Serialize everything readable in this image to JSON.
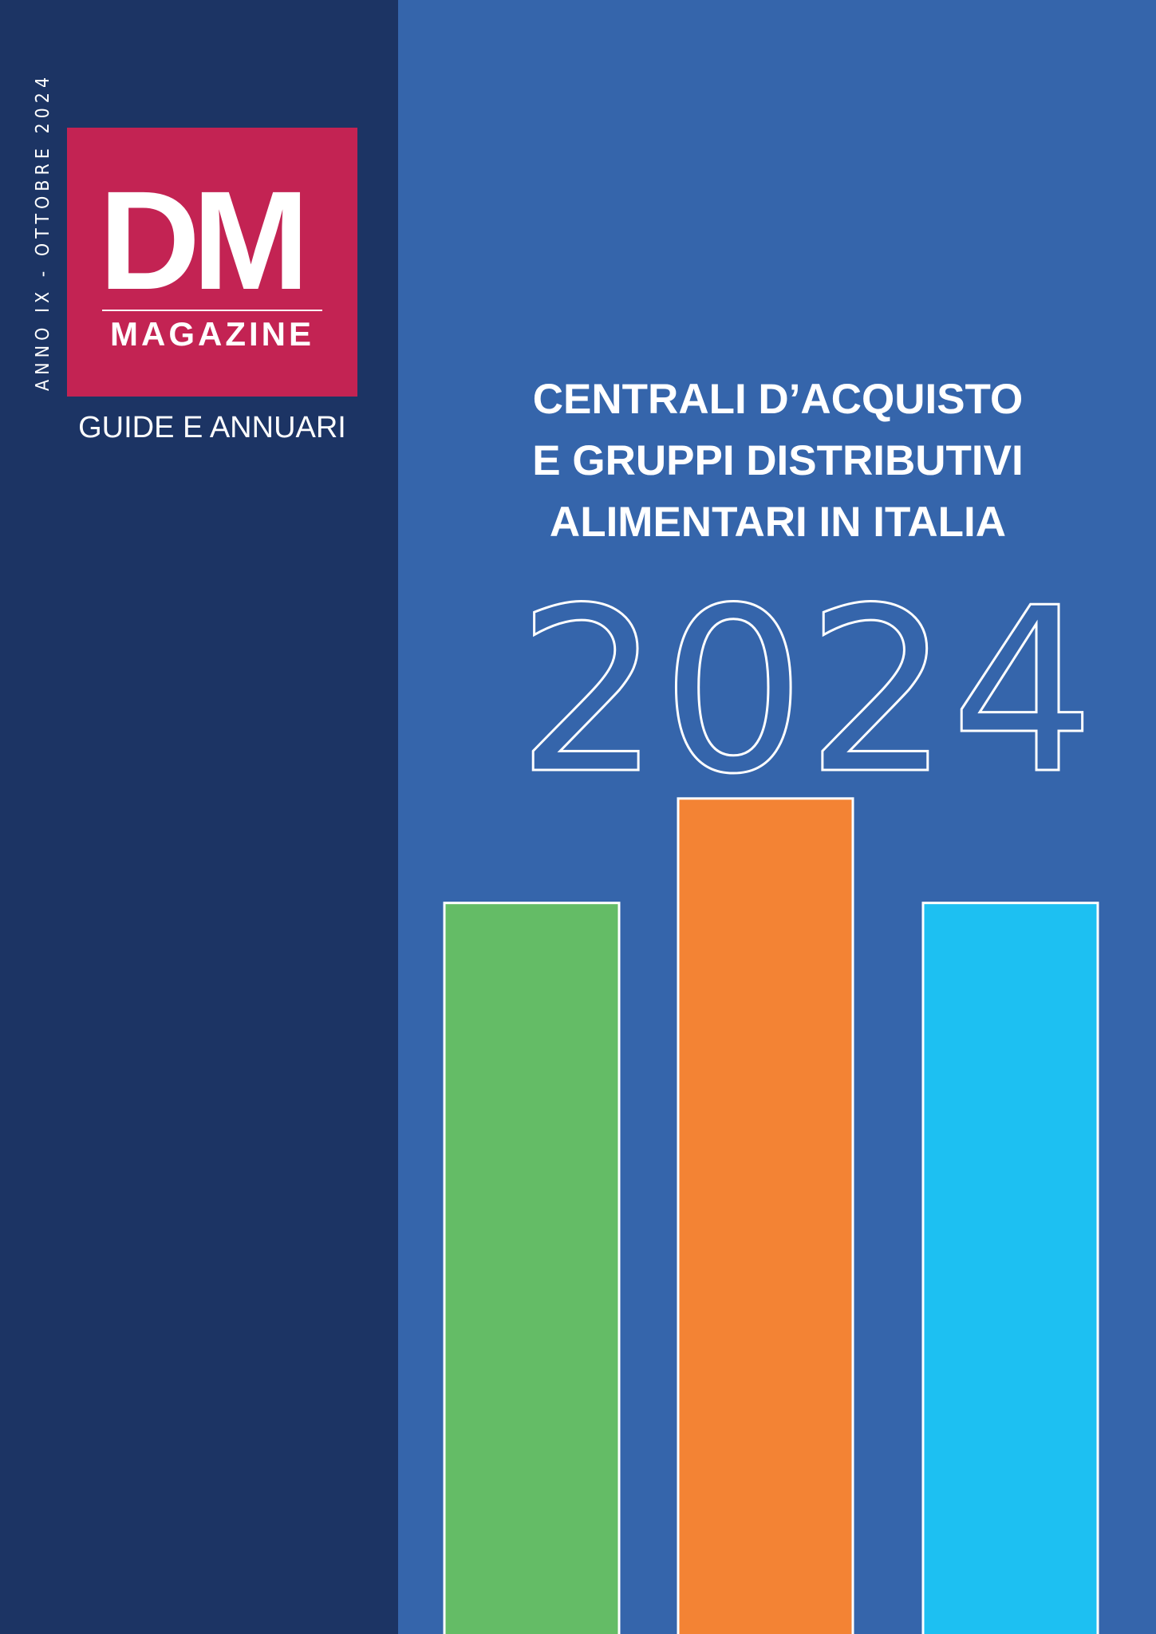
{
  "cover": {
    "issue_line": "ANNO IX - OTTOBRE 2024",
    "logo": {
      "letters": "DM",
      "word": "MAGAZINE"
    },
    "series": "GUIDE E ANNUARI",
    "headline": [
      "CENTRALI D’ACQUISTO",
      "E GRUPPI DISTRIBUTIVI",
      "ALIMENTARI IN ITALIA"
    ],
    "year": "2024"
  },
  "colors": {
    "sidebar": "#1c3464",
    "background": "#3565ab",
    "logo_box": "#c32353",
    "bar_green": "#64bc66",
    "bar_orange": "#f38334",
    "bar_cyan": "#1dc0f2"
  },
  "decorative_bars": {
    "relative_heights": [
      0.77,
      0.88,
      0.77
    ]
  }
}
